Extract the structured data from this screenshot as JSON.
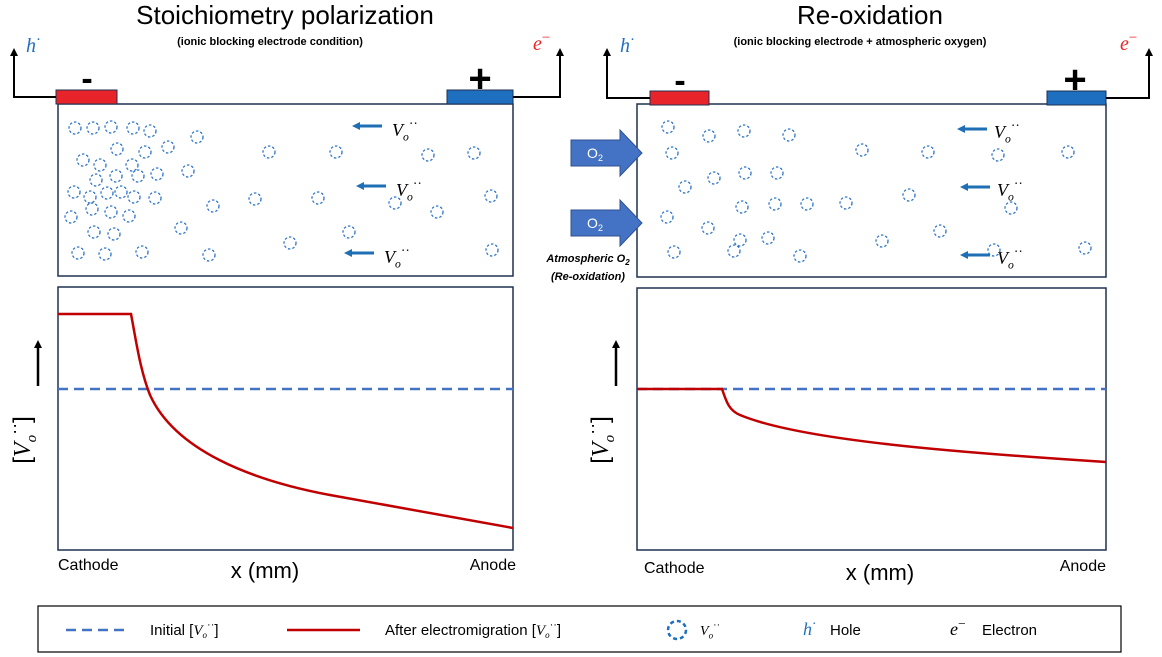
{
  "left_panel": {
    "title": "Stoichiometry polarization",
    "subtitle": "(ionic blocking electrode condition)",
    "hole": {
      "base": "h",
      "sup": "·"
    },
    "electron": {
      "base": "e",
      "sup": "−"
    },
    "cathode_sign": "-",
    "anode_sign": "+",
    "vacancy": {
      "base": "V",
      "sub": "o",
      "sup": "··"
    },
    "y_label": {
      "open": "[",
      "close": "]"
    },
    "x_start": "Cathode",
    "x_label": "x (mm)",
    "x_end": "Anode"
  },
  "right_panel": {
    "title": "Re-oxidation",
    "subtitle": "(ionic blocking electrode + atmospheric oxygen)",
    "hole": {
      "base": "h",
      "sup": "·"
    },
    "electron": {
      "base": "e",
      "sup": "−"
    },
    "cathode_sign": "-",
    "anode_sign": "+",
    "vacancy": {
      "base": "V",
      "sub": "o",
      "sup": "··"
    },
    "oxygen": {
      "base": "O",
      "sub": "2"
    },
    "oxygen_note": {
      "base": "Atmospheric O",
      "sub": "2",
      "line2": "(Re-oxidation)"
    },
    "y_label": {
      "open": "[",
      "close": "]"
    },
    "x_start": "Cathode",
    "x_label": "x (mm)",
    "x_end": "Anode"
  },
  "legend": {
    "initial": {
      "text": "Initial [",
      "close": "]"
    },
    "after": {
      "text": "After electromigration [",
      "close": "]"
    },
    "vacancy": {
      "base": "V",
      "sub": "o",
      "sup": "··"
    },
    "hole_symbol": {
      "base": "h",
      "sup": "·"
    },
    "hole": "Hole",
    "electron_symbol": {
      "base": "e",
      "sup": "−"
    },
    "electron": "Electron"
  }
}
